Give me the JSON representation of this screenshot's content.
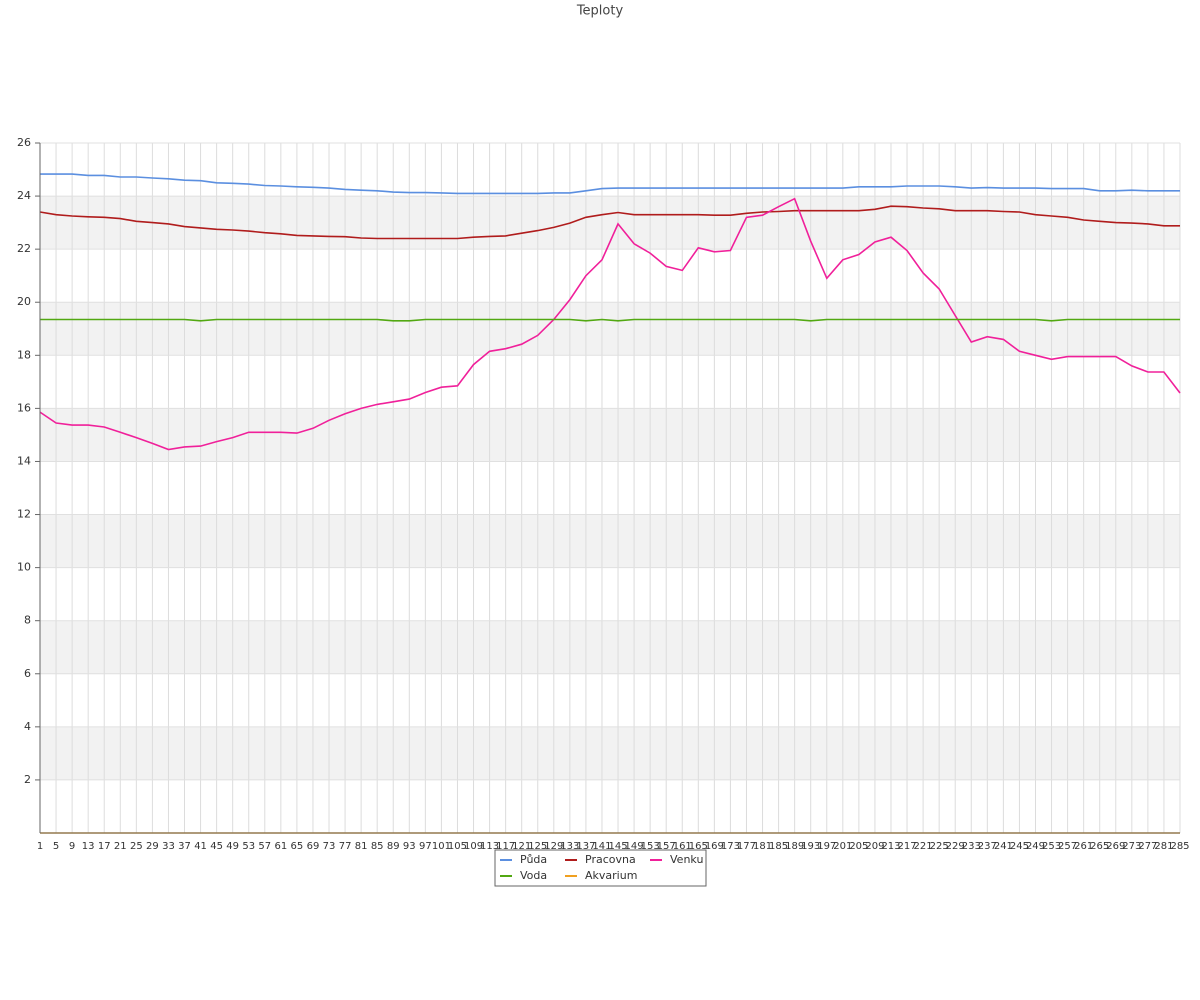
{
  "chart_data": {
    "type": "line",
    "title": "Teploty",
    "categories": [
      "1",
      "5",
      "9",
      "13",
      "17",
      "21",
      "25",
      "29",
      "33",
      "37",
      "41",
      "45",
      "49",
      "53",
      "57",
      "61",
      "65",
      "69",
      "73",
      "77",
      "81",
      "85",
      "89",
      "93",
      "97",
      "101",
      "105",
      "109",
      "113",
      "117",
      "121",
      "125",
      "129",
      "133",
      "137",
      "141",
      "145",
      "149",
      "153",
      "157",
      "161",
      "165",
      "169",
      "173",
      "177",
      "181",
      "185",
      "189",
      "193",
      "197",
      "201",
      "205",
      "209",
      "213",
      "217",
      "221",
      "225",
      "229",
      "233",
      "237",
      "241",
      "245",
      "249",
      "253",
      "257",
      "261",
      "265",
      "269",
      "273",
      "277",
      "281",
      "285"
    ],
    "series": [
      {
        "name": "Půda",
        "color": "#5b8fe0",
        "values": [
          24.83,
          24.83,
          24.83,
          24.78,
          24.78,
          24.72,
          24.72,
          24.68,
          24.65,
          24.6,
          24.58,
          24.5,
          24.48,
          24.45,
          24.4,
          24.38,
          24.35,
          24.33,
          24.3,
          24.25,
          24.22,
          24.2,
          24.15,
          24.13,
          24.13,
          24.12,
          24.1,
          24.1,
          24.1,
          24.1,
          24.1,
          24.1,
          24.12,
          24.12,
          24.2,
          24.28,
          24.3,
          24.3,
          24.3,
          24.3,
          24.3,
          24.3,
          24.3,
          24.3,
          24.3,
          24.3,
          24.3,
          24.3,
          24.3,
          24.3,
          24.3,
          24.35,
          24.35,
          24.35,
          24.38,
          24.38,
          24.38,
          24.35,
          24.3,
          24.32,
          24.3,
          24.3,
          24.3,
          24.28,
          24.28,
          24.28,
          24.2,
          24.2,
          24.22,
          24.2,
          24.2,
          24.2
        ]
      },
      {
        "name": "Pracovna",
        "color": "#b01c1c",
        "values": [
          23.4,
          23.3,
          23.25,
          23.22,
          23.2,
          23.15,
          23.05,
          23.0,
          22.95,
          22.85,
          22.8,
          22.75,
          22.72,
          22.68,
          22.62,
          22.58,
          22.52,
          22.5,
          22.48,
          22.47,
          22.42,
          22.4,
          22.4,
          22.4,
          22.4,
          22.4,
          22.4,
          22.45,
          22.48,
          22.5,
          22.6,
          22.7,
          22.82,
          22.98,
          23.2,
          23.3,
          23.38,
          23.3,
          23.3,
          23.3,
          23.3,
          23.3,
          23.28,
          23.28,
          23.35,
          23.4,
          23.42,
          23.45,
          23.45,
          23.45,
          23.45,
          23.45,
          23.5,
          23.62,
          23.6,
          23.55,
          23.52,
          23.45,
          23.45,
          23.45,
          23.42,
          23.4,
          23.3,
          23.25,
          23.2,
          23.1,
          23.05,
          23.0,
          22.98,
          22.95,
          22.88,
          22.88
        ]
      },
      {
        "name": "Venku",
        "color": "#f0209a",
        "values": [
          15.86,
          15.45,
          15.37,
          15.37,
          15.3,
          15.1,
          14.9,
          14.68,
          14.45,
          14.55,
          14.58,
          14.75,
          14.9,
          15.1,
          15.1,
          15.1,
          15.07,
          15.25,
          15.55,
          15.8,
          16.0,
          16.15,
          16.25,
          16.35,
          16.6,
          16.8,
          16.85,
          17.65,
          18.15,
          18.25,
          18.42,
          18.75,
          19.35,
          20.1,
          21.0,
          21.6,
          22.95,
          22.2,
          21.85,
          21.35,
          21.2,
          22.05,
          21.9,
          21.95,
          23.2,
          23.28,
          23.6,
          23.9,
          22.3,
          20.9,
          21.6,
          21.8,
          22.27,
          22.45,
          21.95,
          21.1,
          20.5,
          19.5,
          18.5,
          18.7,
          18.6,
          18.15,
          18.0,
          17.85,
          17.95,
          17.95,
          17.95,
          17.95,
          17.6,
          17.37,
          17.37,
          16.58
        ]
      },
      {
        "name": "Voda",
        "color": "#52a812",
        "values": [
          19.35,
          19.35,
          19.35,
          19.35,
          19.35,
          19.35,
          19.35,
          19.35,
          19.35,
          19.35,
          19.3,
          19.35,
          19.35,
          19.35,
          19.35,
          19.35,
          19.35,
          19.35,
          19.35,
          19.35,
          19.35,
          19.35,
          19.3,
          19.3,
          19.35,
          19.35,
          19.35,
          19.35,
          19.35,
          19.35,
          19.35,
          19.35,
          19.35,
          19.35,
          19.3,
          19.35,
          19.3,
          19.35,
          19.35,
          19.35,
          19.35,
          19.35,
          19.35,
          19.35,
          19.35,
          19.35,
          19.35,
          19.35,
          19.3,
          19.35,
          19.35,
          19.35,
          19.35,
          19.35,
          19.35,
          19.35,
          19.35,
          19.35,
          19.35,
          19.35,
          19.35,
          19.35,
          19.35,
          19.3,
          19.35,
          19.35,
          19.35,
          19.35,
          19.35,
          19.35,
          19.35,
          19.35
        ]
      },
      {
        "name": "Akvarium",
        "color": "#f0a020",
        "values": [
          0,
          0,
          0,
          0,
          0,
          0,
          0,
          0,
          0,
          0,
          0,
          0,
          0,
          0,
          0,
          0,
          0,
          0,
          0,
          0,
          0,
          0,
          0,
          0,
          0,
          0,
          0,
          0,
          0,
          0,
          0,
          0,
          0,
          0,
          0,
          0,
          0,
          0,
          0,
          0,
          0,
          0,
          0,
          0,
          0,
          0,
          0,
          0,
          0,
          0,
          0,
          0,
          0,
          0,
          0,
          0,
          0,
          0,
          0,
          0,
          0,
          0,
          0,
          0,
          0,
          0,
          0,
          0,
          0,
          0,
          0,
          0
        ]
      }
    ],
    "ylim": [
      0,
      26
    ],
    "yticks": [
      2,
      4,
      6,
      8,
      10,
      12,
      14,
      16,
      18,
      20,
      22,
      24,
      26
    ],
    "grid": true
  }
}
